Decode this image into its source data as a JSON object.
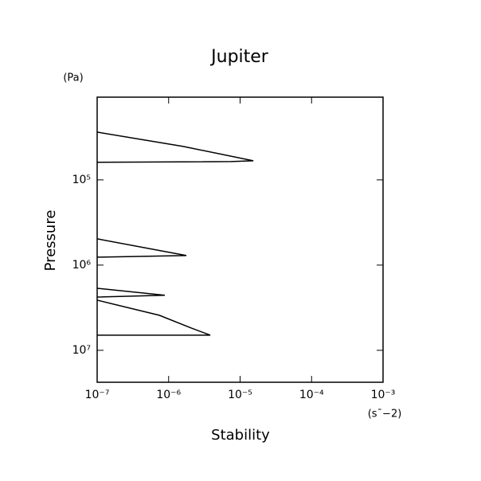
{
  "chart_data": {
    "type": "line",
    "title": "Jupiter",
    "x_label": "Stability",
    "x_unit": "(s¯−2)",
    "y_label": "Pressure",
    "y_unit": "(Pa)",
    "x_log": true,
    "y_log": true,
    "y_inverted": true,
    "xlim": [
      1e-07,
      0.001
    ],
    "xticks": [
      {
        "value": 1e-07,
        "label": "10⁻⁷"
      },
      {
        "value": 1e-06,
        "label": "10⁻⁶"
      },
      {
        "value": 1e-05,
        "label": "10⁻⁵"
      },
      {
        "value": 0.0001,
        "label": "10⁻⁴"
      },
      {
        "value": 0.001,
        "label": "10⁻³"
      }
    ],
    "ylim": [
      10700,
      23700000
    ],
    "yticks": [
      {
        "value": 100000,
        "label": "10⁵"
      },
      {
        "value": 1000000,
        "label": "10⁶"
      },
      {
        "value": 10000000,
        "label": "10⁷"
      }
    ],
    "color": "#000000",
    "x": [
      1e-07,
      1.6e-06,
      1.53e-05,
      7.4e-06,
      1e-07,
      null,
      1e-07,
      1.77e-06,
      1e-07,
      null,
      1e-07,
      8.85e-07,
      1e-07,
      null,
      1e-07,
      7.4e-07,
      2.06e-06,
      3.82e-06,
      1e-07
    ],
    "values": [
      27500,
      40500,
      59700,
      61000,
      62200,
      null,
      492000,
      773000,
      807000,
      null,
      1870000,
      2260000,
      2370000,
      null,
      2580000,
      3880000,
      5470000,
      6640000,
      6640000
    ]
  }
}
